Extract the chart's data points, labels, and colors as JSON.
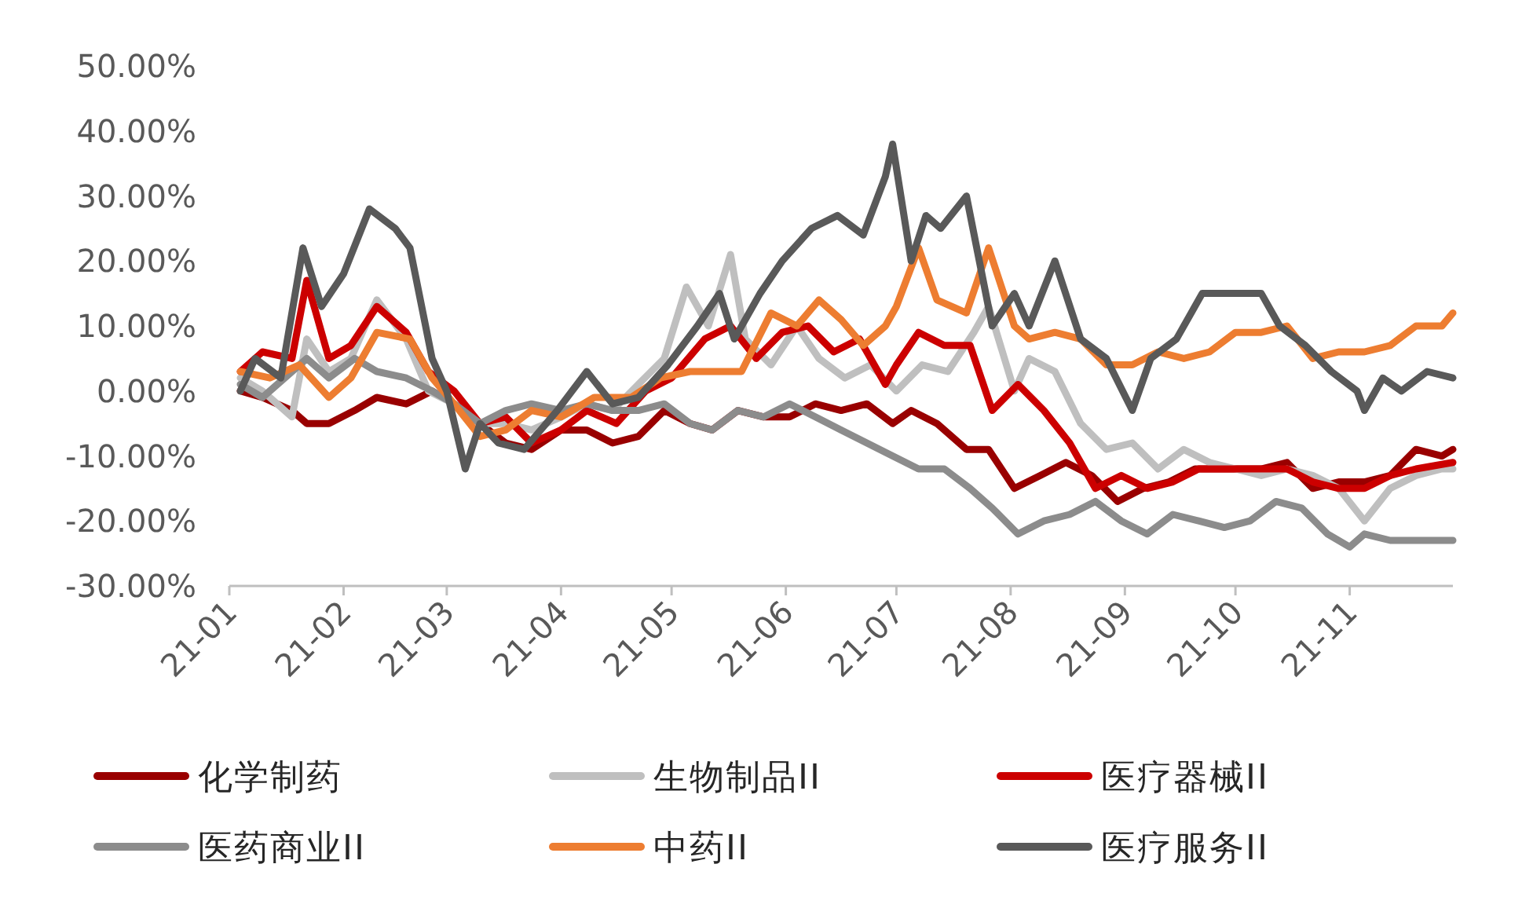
{
  "chart_data": {
    "type": "line",
    "legend": "bottom",
    "marker": "none",
    "line_style": "solid",
    "xlim": [
      "--01-01",
      "--11-29"
    ],
    "xticks": [
      {
        "value": "--01-01",
        "label": "21-01"
      },
      {
        "value": "--02-01",
        "label": "21-02"
      },
      {
        "value": "--03-01",
        "label": "21-03"
      },
      {
        "value": "--04-01",
        "label": "21-04"
      },
      {
        "value": "--05-01",
        "label": "21-05"
      },
      {
        "value": "--06-01",
        "label": "21-06"
      },
      {
        "value": "--07-01",
        "label": "21-07"
      },
      {
        "value": "--08-01",
        "label": "21-08"
      },
      {
        "value": "--09-01",
        "label": "21-09"
      },
      {
        "value": "--10-01",
        "label": "21-10"
      },
      {
        "value": "--11-01",
        "label": "21-11"
      }
    ],
    "ylim": [
      -30,
      50
    ],
    "yticks": [
      {
        "value": -30,
        "label": "-30.00%"
      },
      {
        "value": -20,
        "label": "-20.00%"
      },
      {
        "value": -10,
        "label": "-10.00%"
      },
      {
        "value": 0,
        "label": "0.00%"
      },
      {
        "value": 10,
        "label": "10.00%"
      },
      {
        "value": 20,
        "label": "20.00%"
      },
      {
        "value": 30,
        "label": "30.00%"
      },
      {
        "value": 40,
        "label": "40.00%"
      },
      {
        "value": 50,
        "label": "50.00%"
      }
    ],
    "series": [
      {
        "name": "化学制药",
        "color": "#990000",
        "x": [
          "--01-04",
          "--01-10",
          "--01-18",
          "--01-22",
          "--01-28",
          "--02-04",
          "--02-10",
          "--02-18",
          "--02-25",
          "--03-03",
          "--03-10",
          "--03-17",
          "--03-24",
          "--04-01",
          "--04-08",
          "--04-15",
          "--04-22",
          "--04-29",
          "--05-06",
          "--05-12",
          "--05-19",
          "--05-26",
          "--06-02",
          "--06-09",
          "--06-16",
          "--06-23",
          "--06-30",
          "--07-05",
          "--07-12",
          "--07-20",
          "--07-26",
          "--08-02",
          "--08-09",
          "--08-16",
          "--08-23",
          "--08-30",
          "--09-06",
          "--09-13",
          "--09-20",
          "--10-01",
          "--10-08",
          "--10-15",
          "--10-22",
          "--10-29",
          "--11-05",
          "--11-12",
          "--11-19",
          "--11-26",
          "--11-29"
        ],
        "values": [
          0,
          -1,
          -3,
          -5,
          -5,
          -3,
          -1,
          -2,
          0,
          -2,
          -5,
          -8,
          -9,
          -6,
          -6,
          -8,
          -7,
          -3,
          -5,
          -6,
          -3,
          -4,
          -4,
          -2,
          -3,
          -2,
          -5,
          -3,
          -5,
          -9,
          -9,
          -15,
          -13,
          -11,
          -13,
          -17,
          -15,
          -14,
          -12,
          -12,
          -12,
          -11,
          -15,
          -14,
          -14,
          -13,
          -9,
          -10,
          -9
        ]
      },
      {
        "name": "生物制品II",
        "color": "#bfbfbf",
        "x": [
          "--01-04",
          "--01-10",
          "--01-18",
          "--01-22",
          "--01-28",
          "--02-03",
          "--02-10",
          "--02-18",
          "--02-24",
          "--03-03",
          "--03-10",
          "--03-17",
          "--03-24",
          "--04-01",
          "--04-08",
          "--04-15",
          "--04-22",
          "--04-29",
          "--05-05",
          "--05-11",
          "--05-17",
          "--05-21",
          "--05-28",
          "--06-04",
          "--06-10",
          "--06-17",
          "--06-24",
          "--07-01",
          "--07-08",
          "--07-15",
          "--07-22",
          "--07-26",
          "--08-02",
          "--08-06",
          "--08-13",
          "--08-20",
          "--08-27",
          "--09-03",
          "--09-10",
          "--09-17",
          "--09-24",
          "--10-01",
          "--10-08",
          "--10-15",
          "--10-22",
          "--10-29",
          "--11-05",
          "--11-12",
          "--11-19",
          "--11-26",
          "--11-29"
        ],
        "values": [
          2,
          0,
          -4,
          8,
          3,
          5,
          14,
          8,
          0,
          -2,
          -5,
          -5,
          -6,
          -4,
          -2,
          -3,
          1,
          5,
          16,
          10,
          21,
          8,
          4,
          10,
          5,
          2,
          4,
          0,
          4,
          3,
          9,
          13,
          0,
          5,
          3,
          -5,
          -9,
          -8,
          -12,
          -9,
          -11,
          -12,
          -13,
          -12,
          -13,
          -15,
          -20,
          -15,
          -13,
          -12,
          -12
        ]
      },
      {
        "name": "医疗器械II",
        "color": "#cc0000",
        "x": [
          "--01-04",
          "--01-10",
          "--01-18",
          "--01-22",
          "--01-28",
          "--02-03",
          "--02-10",
          "--02-18",
          "--02-24",
          "--03-03",
          "--03-10",
          "--03-17",
          "--03-24",
          "--04-01",
          "--04-08",
          "--04-16",
          "--04-24",
          "--05-01",
          "--05-10",
          "--05-17",
          "--05-24",
          "--05-31",
          "--06-07",
          "--06-14",
          "--06-21",
          "--06-28",
          "--07-01",
          "--07-07",
          "--07-14",
          "--07-21",
          "--07-27",
          "--08-03",
          "--08-10",
          "--08-17",
          "--08-24",
          "--08-31",
          "--09-07",
          "--09-14",
          "--09-21",
          "--09-30",
          "--10-08",
          "--10-15",
          "--10-22",
          "--10-29",
          "--11-05",
          "--11-12",
          "--11-19",
          "--11-29"
        ],
        "values": [
          3,
          6,
          5,
          17,
          5,
          7,
          13,
          9,
          3,
          0,
          -5,
          -4,
          -8,
          -6,
          -3,
          -5,
          0,
          2,
          8,
          10,
          5,
          9,
          10,
          6,
          8,
          1,
          4,
          9,
          7,
          7,
          -3,
          1,
          -3,
          -8,
          -15,
          -13,
          -15,
          -14,
          -12,
          -12,
          -12,
          -12,
          -14,
          -15,
          -15,
          -13,
          -12,
          -11
        ]
      },
      {
        "name": "医药商业II",
        "color": "#8c8c8c",
        "x": [
          "--01-04",
          "--01-10",
          "--01-18",
          "--01-22",
          "--01-28",
          "--02-04",
          "--02-10",
          "--02-18",
          "--02-25",
          "--03-03",
          "--03-10",
          "--03-17",
          "--03-24",
          "--04-01",
          "--04-08",
          "--04-15",
          "--04-22",
          "--04-29",
          "--05-06",
          "--05-12",
          "--05-19",
          "--05-26",
          "--06-02",
          "--06-09",
          "--06-16",
          "--06-23",
          "--06-30",
          "--07-07",
          "--07-14",
          "--07-21",
          "--07-27",
          "--08-03",
          "--08-10",
          "--08-17",
          "--08-24",
          "--08-31",
          "--09-07",
          "--09-14",
          "--09-21",
          "--09-28",
          "--10-05",
          "--10-12",
          "--10-19",
          "--10-26",
          "--11-01",
          "--11-05",
          "--11-12",
          "--11-19",
          "--11-26",
          "--11-29"
        ],
        "values": [
          1,
          -1,
          3,
          5,
          2,
          5,
          3,
          2,
          0,
          -2,
          -5,
          -3,
          -2,
          -3,
          -2,
          -3,
          -3,
          -2,
          -5,
          -6,
          -3,
          -4,
          -2,
          -4,
          -6,
          -8,
          -10,
          -12,
          -12,
          -15,
          -18,
          -22,
          -20,
          -19,
          -17,
          -20,
          -22,
          -19,
          -20,
          -21,
          -20,
          -17,
          -18,
          -22,
          -24,
          -22,
          -23,
          -23,
          -23,
          -23
        ]
      },
      {
        "name": "中药II",
        "color": "#ed7d31",
        "x": [
          "--01-04",
          "--01-12",
          "--01-20",
          "--01-28",
          "--02-03",
          "--02-10",
          "--02-19",
          "--02-25",
          "--03-03",
          "--03-10",
          "--03-17",
          "--03-24",
          "--04-01",
          "--04-10",
          "--04-20",
          "--04-28",
          "--05-06",
          "--05-14",
          "--05-20",
          "--05-28",
          "--06-04",
          "--06-10",
          "--06-16",
          "--06-22",
          "--06-28",
          "--07-01",
          "--07-07",
          "--07-12",
          "--07-20",
          "--07-26",
          "--08-02",
          "--08-06",
          "--08-13",
          "--08-20",
          "--08-27",
          "--09-03",
          "--09-10",
          "--09-17",
          "--09-24",
          "--10-01",
          "--10-08",
          "--10-15",
          "--10-22",
          "--10-29",
          "--11-05",
          "--11-12",
          "--11-19",
          "--11-26",
          "--11-29"
        ],
        "values": [
          3,
          2,
          4,
          -1,
          2,
          9,
          8,
          2,
          -2,
          -7,
          -6,
          -3,
          -4,
          -1,
          -1,
          2,
          3,
          3,
          3,
          12,
          10,
          14,
          11,
          7,
          10,
          13,
          22,
          14,
          12,
          22,
          10,
          8,
          9,
          8,
          4,
          4,
          6,
          5,
          6,
          9,
          9,
          10,
          5,
          6,
          6,
          7,
          10,
          10,
          12
        ]
      },
      {
        "name": "医疗服务II",
        "color": "#595959",
        "x": [
          "--01-04",
          "--01-08",
          "--01-15",
          "--01-21",
          "--01-26",
          "--02-01",
          "--02-08",
          "--02-15",
          "--02-19",
          "--02-25",
          "--03-01",
          "--03-06",
          "--03-10",
          "--03-15",
          "--03-22",
          "--03-31",
          "--04-08",
          "--04-15",
          "--04-22",
          "--04-30",
          "--05-08",
          "--05-14",
          "--05-18",
          "--05-25",
          "--05-31",
          "--06-08",
          "--06-15",
          "--06-22",
          "--06-28",
          "--06-30",
          "--07-05",
          "--07-09",
          "--07-13",
          "--07-20",
          "--07-27",
          "--08-02",
          "--08-06",
          "--08-13",
          "--08-20",
          "--08-27",
          "--09-03",
          "--09-08",
          "--09-15",
          "--09-22",
          "--09-30",
          "--10-08",
          "--10-13",
          "--10-20",
          "--10-27",
          "--11-03",
          "--11-05",
          "--11-10",
          "--11-15",
          "--11-22",
          "--11-29"
        ],
        "values": [
          0,
          5,
          2,
          22,
          13,
          18,
          28,
          25,
          22,
          5,
          0,
          -12,
          -5,
          -8,
          -9,
          -3,
          3,
          -2,
          -1,
          4,
          10,
          15,
          8,
          15,
          20,
          25,
          27,
          24,
          33,
          38,
          20,
          27,
          25,
          30,
          10,
          15,
          10,
          20,
          8,
          5,
          -3,
          5,
          8,
          15,
          15,
          15,
          10,
          7,
          3,
          0,
          -3,
          2,
          0,
          3,
          2
        ]
      }
    ]
  }
}
